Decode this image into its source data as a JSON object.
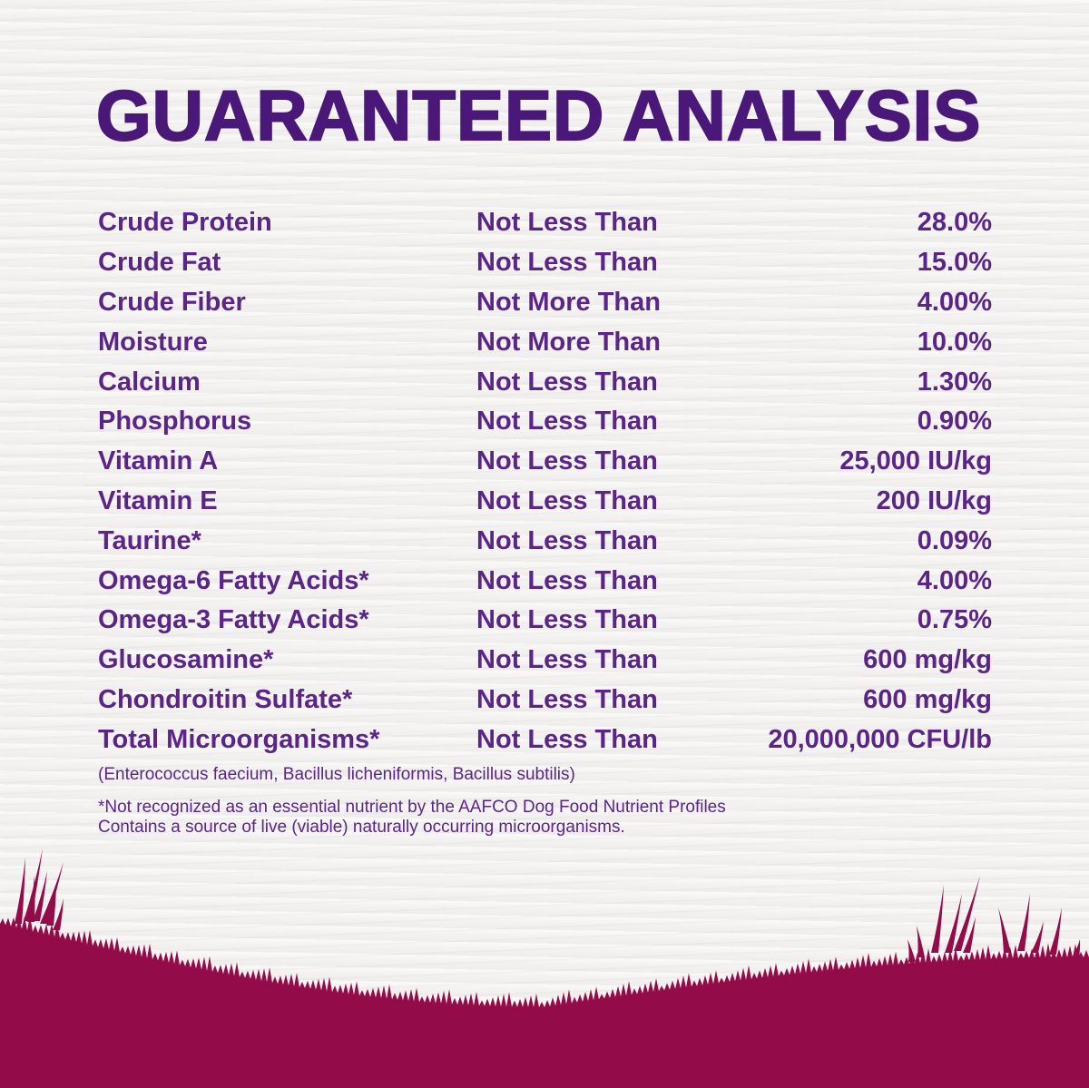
{
  "title": "GUARANTEED ANALYSIS",
  "rows": [
    {
      "nutrient": "Crude Protein",
      "qualifier": "Not Less Than",
      "value": "28.0%"
    },
    {
      "nutrient": "Crude Fat",
      "qualifier": "Not Less Than",
      "value": "15.0%"
    },
    {
      "nutrient": "Crude Fiber",
      "qualifier": "Not More Than",
      "value": "4.00%"
    },
    {
      "nutrient": "Moisture",
      "qualifier": "Not More Than",
      "value": "10.0%"
    },
    {
      "nutrient": "Calcium",
      "qualifier": "Not Less Than",
      "value": "1.30%"
    },
    {
      "nutrient": "Phosphorus",
      "qualifier": "Not Less Than",
      "value": "0.90%"
    },
    {
      "nutrient": "Vitamin A",
      "qualifier": "Not Less Than",
      "value": "25,000 IU/kg"
    },
    {
      "nutrient": "Vitamin E",
      "qualifier": "Not Less Than",
      "value": "200 IU/kg"
    },
    {
      "nutrient": "Taurine*",
      "qualifier": "Not Less Than",
      "value": "0.09%"
    },
    {
      "nutrient": "Omega-6 Fatty Acids*",
      "qualifier": "Not Less Than",
      "value": "4.00%"
    },
    {
      "nutrient": "Omega-3 Fatty Acids*",
      "qualifier": "Not Less Than",
      "value": "0.75%"
    },
    {
      "nutrient": "Glucosamine*",
      "qualifier": "Not Less Than",
      "value": "600 mg/kg"
    },
    {
      "nutrient": "Chondroitin Sulfate*",
      "qualifier": "Not Less Than",
      "value": "600 mg/kg"
    },
    {
      "nutrient": "Total Microorganisms*",
      "qualifier": "Not Less Than",
      "value": "20,000,000 CFU/lb"
    }
  ],
  "microorganisms_note": "(Enterococcus faecium, Bacillus licheniformis, Bacillus subtilis)",
  "footnotes": [
    "*Not recognized as an essential nutrient by the AAFCO Dog Food Nutrient Profiles",
    "Contains a source of live (viable) naturally occurring microorganisms."
  ],
  "colors": {
    "title": "#4a1878",
    "text": "#5b2588",
    "ground": "#930b48",
    "background": "#f3f2f1"
  }
}
